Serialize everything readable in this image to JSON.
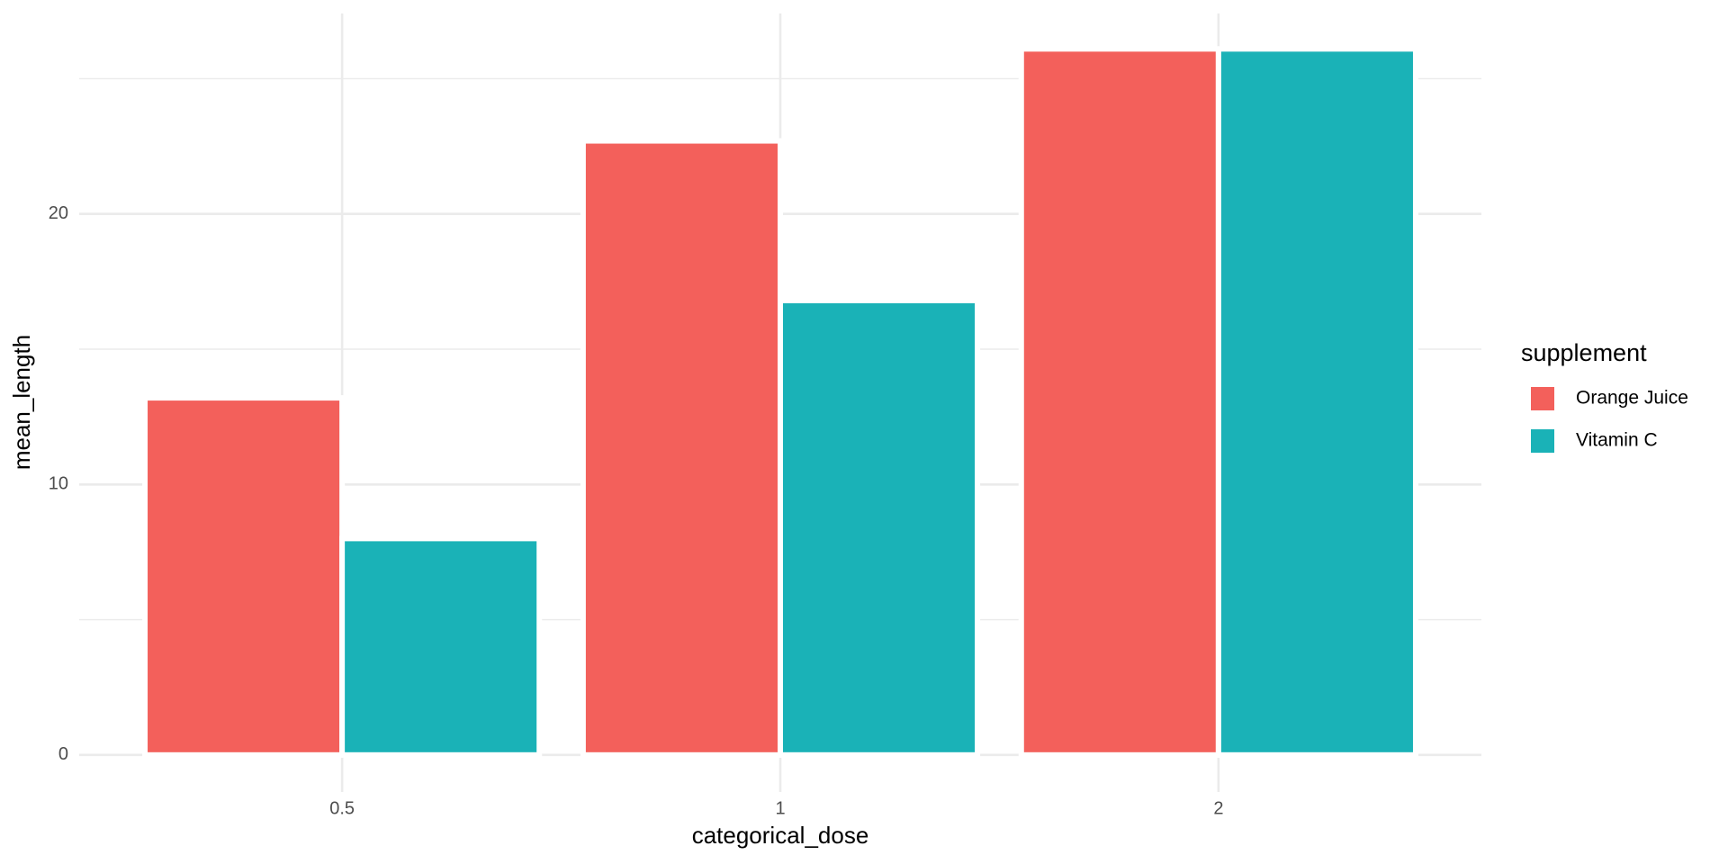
{
  "chart_data": {
    "type": "bar",
    "x_label": "categorical_dose",
    "y_label": "mean_length",
    "categories": [
      "0.5",
      "1",
      "2"
    ],
    "legend_title": "supplement",
    "legend_position": "right",
    "series": [
      {
        "name": "Orange Juice",
        "color": "#f3605b",
        "values": [
          13.2,
          22.7,
          26.1
        ]
      },
      {
        "name": "Vitamin C",
        "color": "#1ab2b7",
        "values": [
          8.0,
          16.8,
          26.1
        ]
      }
    ],
    "ylim": [
      -1.37,
      27.41
    ],
    "yticks": [
      0,
      10,
      20
    ],
    "yminor_ticks": [
      5,
      15,
      25
    ],
    "grid": true
  }
}
